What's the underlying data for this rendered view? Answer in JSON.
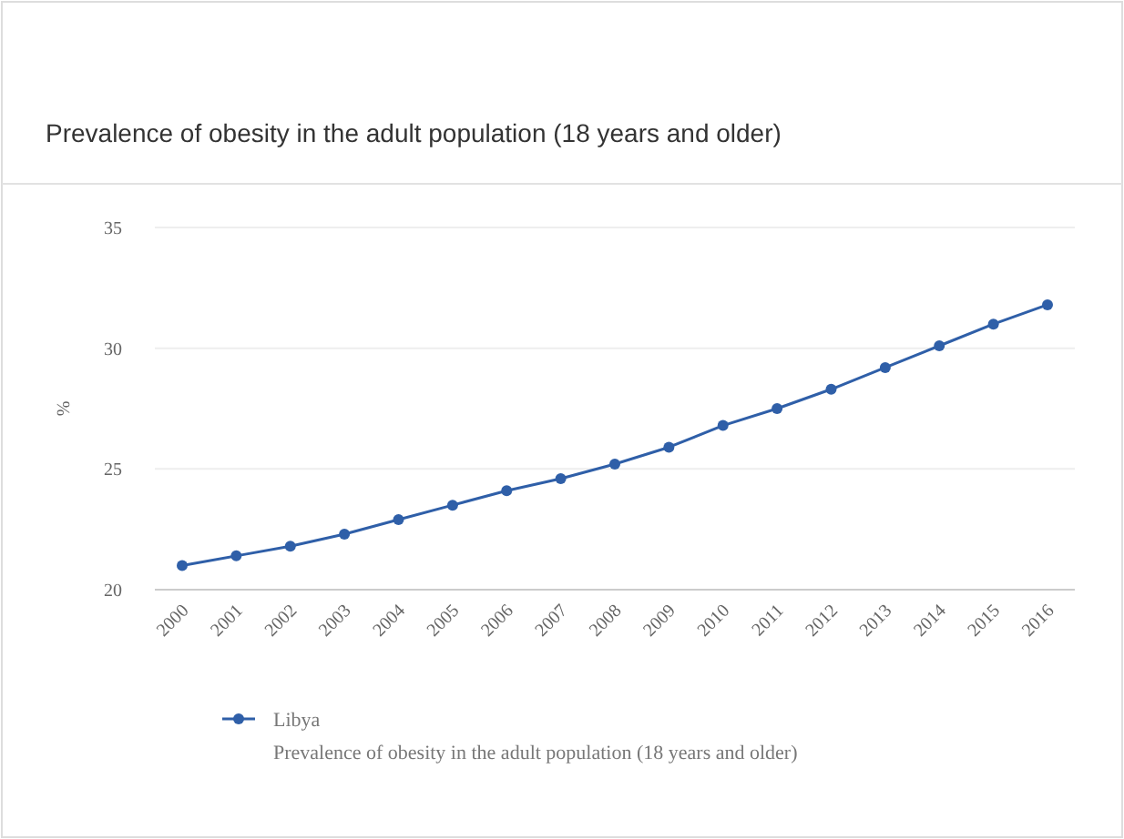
{
  "chart_data": {
    "type": "line",
    "title": "Prevalence of obesity in the adult population (18 years and older)",
    "ylabel": "%",
    "categories": [
      "2000",
      "2001",
      "2002",
      "2003",
      "2004",
      "2005",
      "2006",
      "2007",
      "2008",
      "2009",
      "2010",
      "2011",
      "2012",
      "2013",
      "2014",
      "2015",
      "2016"
    ],
    "series": [
      {
        "name": "Libya",
        "color": "#2f5fa8",
        "values": [
          21.0,
          21.4,
          21.8,
          22.3,
          22.9,
          23.5,
          24.1,
          24.6,
          25.2,
          25.9,
          26.8,
          27.5,
          28.3,
          29.2,
          30.1,
          31.0,
          31.8
        ]
      }
    ],
    "ylim": [
      20,
      35
    ],
    "yticks": [
      20,
      25,
      30,
      35
    ],
    "grid": "y",
    "legend": "bottom",
    "marker": "circle",
    "line_style": "solid",
    "annotations": [
      "Prevalence of obesity in the adult population (18 years and older)"
    ]
  }
}
